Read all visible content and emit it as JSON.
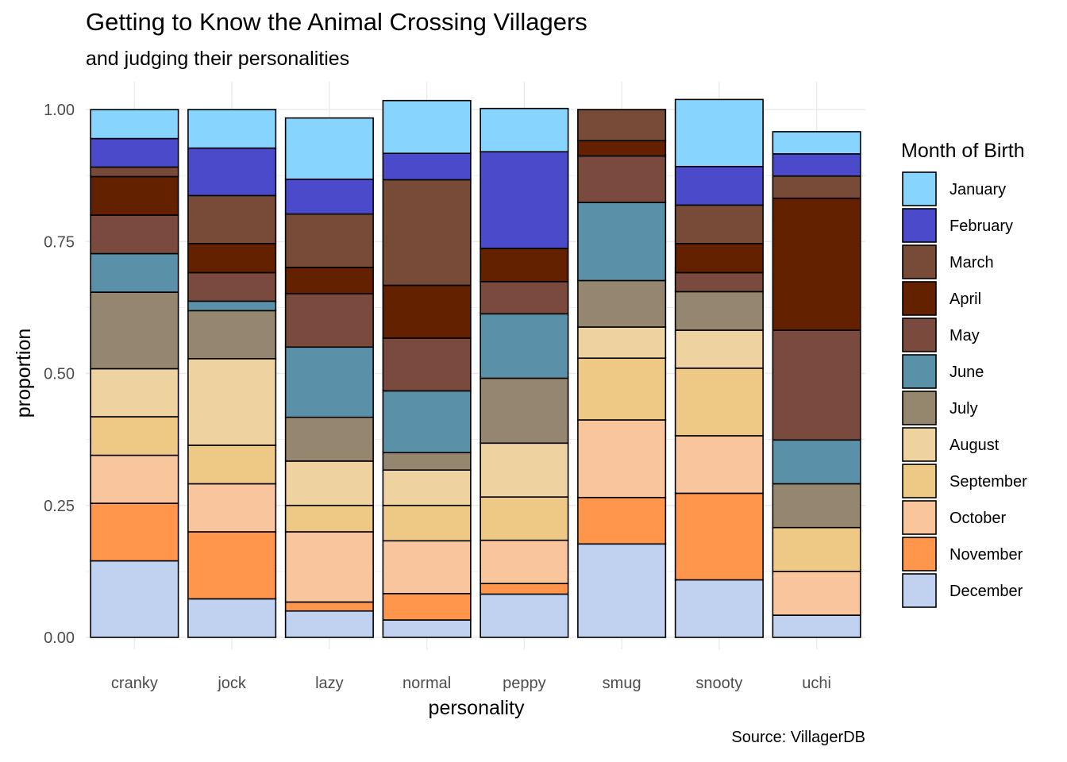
{
  "chart_data": {
    "type": "bar",
    "stacked": "proportion",
    "title": "Getting to Know the Animal Crossing Villagers",
    "subtitle": "and judging their personalities",
    "caption": "Source: VillagerDB",
    "xlabel": "personality",
    "ylabel": "proportion",
    "ylim": [
      0,
      1
    ],
    "y_ticks": [
      "0.00",
      "0.25",
      "0.50",
      "0.75",
      "1.00"
    ],
    "grid": true,
    "legend": {
      "title": "Month of Birth",
      "placement": "right"
    },
    "categories": [
      "cranky",
      "jock",
      "lazy",
      "normal",
      "peppy",
      "smug",
      "snooty",
      "uchi"
    ],
    "series": [
      {
        "name": "January",
        "color": "#87D4FF",
        "values": [
          0.055,
          0.073,
          0.116,
          0.1,
          0.082,
          0.0,
          0.127,
          0.042
        ]
      },
      {
        "name": "February",
        "color": "#4B4ACB",
        "values": [
          0.054,
          0.09,
          0.066,
          0.05,
          0.183,
          0.0,
          0.073,
          0.042
        ]
      },
      {
        "name": "March",
        "color": "#784B38",
        "values": [
          0.018,
          0.091,
          0.101,
          0.2,
          0.0,
          0.059,
          0.073,
          0.042
        ]
      },
      {
        "name": "April",
        "color": "#632100",
        "values": [
          0.073,
          0.055,
          0.05,
          0.1,
          0.063,
          0.029,
          0.055,
          0.25
        ]
      },
      {
        "name": "May",
        "color": "#7B4A3E",
        "values": [
          0.073,
          0.054,
          0.101,
          0.1,
          0.061,
          0.088,
          0.036,
          0.208
        ]
      },
      {
        "name": "June",
        "color": "#5A91A9",
        "values": [
          0.073,
          0.018,
          0.133,
          0.117,
          0.122,
          0.148,
          0.0,
          0.083
        ]
      },
      {
        "name": "July",
        "color": "#958670",
        "values": [
          0.145,
          0.091,
          0.083,
          0.033,
          0.123,
          0.088,
          0.073,
          0.083
        ]
      },
      {
        "name": "August",
        "color": "#EED3A1",
        "values": [
          0.091,
          0.164,
          0.084,
          0.067,
          0.102,
          0.059,
          0.072,
          0.0
        ]
      },
      {
        "name": "September",
        "color": "#EEC885",
        "values": [
          0.073,
          0.073,
          0.05,
          0.067,
          0.082,
          0.117,
          0.128,
          0.083
        ]
      },
      {
        "name": "October",
        "color": "#F8C59C",
        "values": [
          0.091,
          0.091,
          0.133,
          0.1,
          0.082,
          0.147,
          0.109,
          0.083
        ]
      },
      {
        "name": "November",
        "color": "#FF964B",
        "values": [
          0.109,
          0.127,
          0.017,
          0.05,
          0.02,
          0.088,
          0.164,
          0.0
        ]
      },
      {
        "name": "December",
        "color": "#C1D1F0",
        "values": [
          0.145,
          0.073,
          0.05,
          0.033,
          0.082,
          0.177,
          0.109,
          0.042
        ]
      }
    ]
  }
}
